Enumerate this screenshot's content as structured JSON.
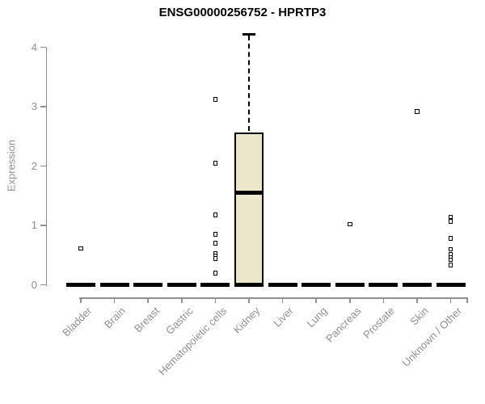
{
  "chart_data": {
    "type": "boxplot",
    "title": "ENSG00000256752 - HPRTP3",
    "ylabel": "Expression",
    "xlabel": "",
    "yticks": [
      0,
      1,
      2,
      3,
      4
    ],
    "ylim": [
      0,
      4.3
    ],
    "grid": false,
    "legend": false,
    "colors": {
      "box_fill": "#ece7cb",
      "box_border": "#000000",
      "axis": "#8f8f8f",
      "title_color": "#000000",
      "background": "#ffffff"
    },
    "categories": [
      "Bladder",
      "Brain",
      "Breast",
      "Gastric",
      "Hematopoietic cells",
      "Kidney",
      "Liver",
      "Lung",
      "Pancreas",
      "Prostate",
      "Skin",
      "Unknown / Other"
    ],
    "boxes": [
      {
        "category": "Bladder",
        "whisker_low": 0,
        "q1": 0,
        "median": 0,
        "q3": 0,
        "whisker_high": 0,
        "outliers": [
          0.61
        ]
      },
      {
        "category": "Brain",
        "whisker_low": 0,
        "q1": 0,
        "median": 0,
        "q3": 0,
        "whisker_high": 0,
        "outliers": []
      },
      {
        "category": "Breast",
        "whisker_low": 0,
        "q1": 0,
        "median": 0,
        "q3": 0,
        "whisker_high": 0,
        "outliers": []
      },
      {
        "category": "Gastric",
        "whisker_low": 0,
        "q1": 0,
        "median": 0,
        "q3": 0,
        "whisker_high": 0,
        "outliers": []
      },
      {
        "category": "Hematopoietic cells",
        "whisker_low": 0,
        "q1": 0,
        "median": 0,
        "q3": 0,
        "whisker_high": 0,
        "outliers": [
          3.12,
          2.05,
          1.18,
          0.85,
          0.7,
          0.53,
          0.48,
          0.44,
          0.2
        ]
      },
      {
        "category": "Kidney",
        "whisker_low": 0,
        "q1": 0,
        "median": 1.55,
        "q3": 2.57,
        "whisker_high": 4.22,
        "outliers": []
      },
      {
        "category": "Liver",
        "whisker_low": 0,
        "q1": 0,
        "median": 0,
        "q3": 0,
        "whisker_high": 0,
        "outliers": []
      },
      {
        "category": "Lung",
        "whisker_low": 0,
        "q1": 0,
        "median": 0,
        "q3": 0,
        "whisker_high": 0,
        "outliers": []
      },
      {
        "category": "Pancreas",
        "whisker_low": 0,
        "q1": 0,
        "median": 0,
        "q3": 0,
        "whisker_high": 0,
        "outliers": [
          1.02
        ]
      },
      {
        "category": "Prostate",
        "whisker_low": 0,
        "q1": 0,
        "median": 0,
        "q3": 0,
        "whisker_high": 0,
        "outliers": []
      },
      {
        "category": "Skin",
        "whisker_low": 0,
        "q1": 0,
        "median": 0,
        "q3": 0,
        "whisker_high": 0,
        "outliers": [
          2.92
        ]
      },
      {
        "category": "Unknown / Other",
        "whisker_low": 0,
        "q1": 0,
        "median": 0,
        "q3": 0,
        "whisker_high": 0,
        "outliers": [
          1.14,
          1.07,
          0.78,
          0.6,
          0.51,
          0.46,
          0.42,
          0.33
        ]
      }
    ]
  }
}
